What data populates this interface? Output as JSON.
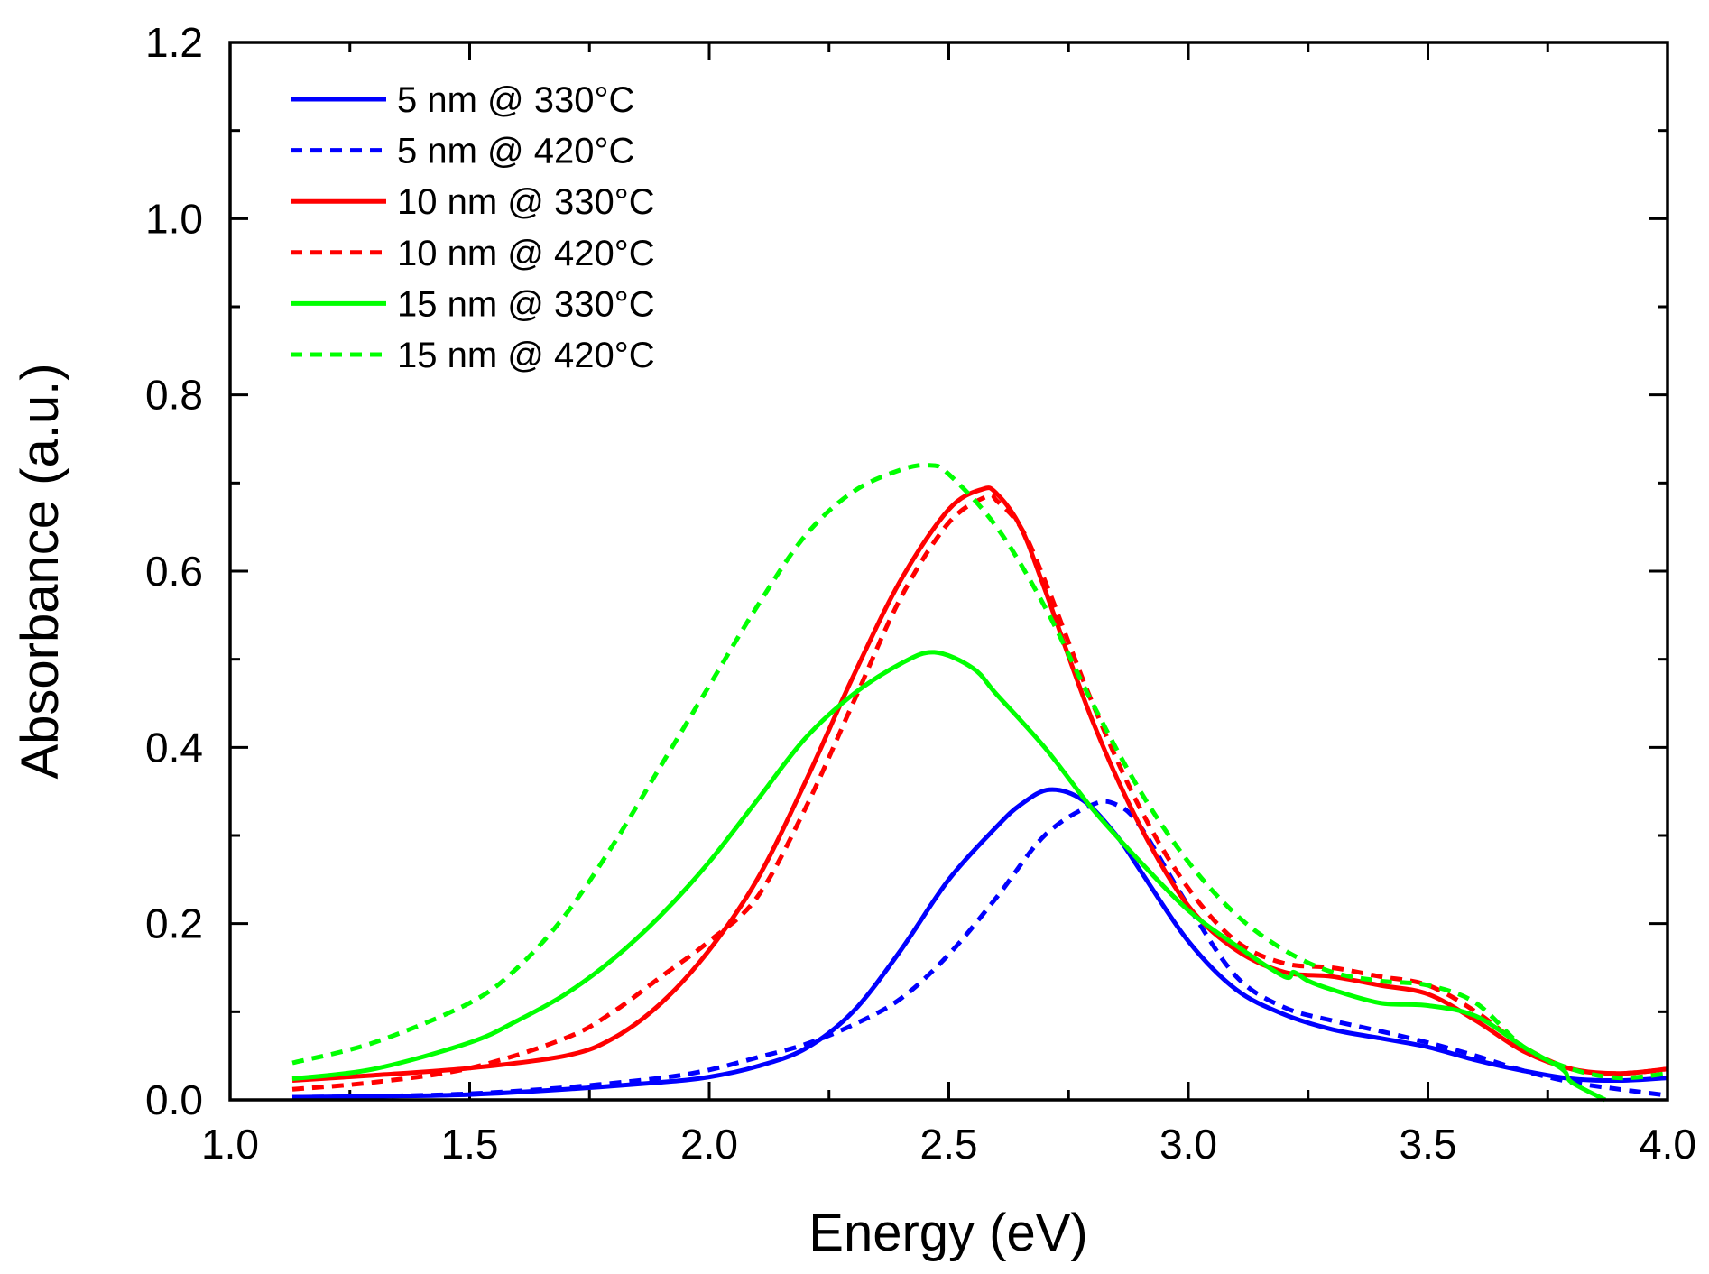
{
  "chart_data": {
    "type": "line",
    "title": "",
    "xlabel": "Energy (eV)",
    "ylabel": "Absorbance (a.u.)",
    "xlim": [
      1.0,
      4.0
    ],
    "ylim": [
      0.0,
      1.2
    ],
    "xticks": [
      1.0,
      1.5,
      2.0,
      2.5,
      3.0,
      3.5,
      4.0
    ],
    "xtick_labels": [
      "1.0",
      "1.5",
      "2.0",
      "2.5",
      "3.0",
      "3.5",
      "4.0"
    ],
    "yticks": [
      0.0,
      0.2,
      0.4,
      0.6,
      0.8,
      1.0,
      1.2
    ],
    "ytick_labels": [
      "0.0",
      "0.2",
      "0.4",
      "0.6",
      "0.8",
      "1.0",
      "1.2"
    ],
    "grid": false,
    "legend_position": "top-left",
    "series": [
      {
        "name": "5 nm @ 330°C",
        "color": "#0000ff",
        "dash": "solid",
        "x": [
          1.13,
          1.3,
          1.5,
          1.7,
          1.9,
          2.0,
          2.1,
          2.2,
          2.3,
          2.4,
          2.5,
          2.6,
          2.65,
          2.71,
          2.78,
          2.85,
          2.9,
          3.0,
          3.1,
          3.2,
          3.3,
          3.4,
          3.5,
          3.6,
          3.7,
          3.8,
          3.9,
          4.0
        ],
        "y": [
          0.003,
          0.004,
          0.006,
          0.012,
          0.02,
          0.026,
          0.038,
          0.058,
          0.1,
          0.17,
          0.25,
          0.31,
          0.335,
          0.352,
          0.34,
          0.3,
          0.26,
          0.18,
          0.125,
          0.097,
          0.08,
          0.07,
          0.06,
          0.045,
          0.033,
          0.024,
          0.022,
          0.025
        ]
      },
      {
        "name": "5 nm @ 420°C",
        "color": "#0000ff",
        "dash": "dashed",
        "x": [
          1.13,
          1.3,
          1.5,
          1.7,
          1.9,
          2.0,
          2.1,
          2.2,
          2.3,
          2.4,
          2.5,
          2.6,
          2.7,
          2.8,
          2.85,
          2.9,
          3.0,
          3.1,
          3.2,
          3.3,
          3.4,
          3.5,
          3.6,
          3.7,
          3.8,
          3.9,
          4.0
        ],
        "y": [
          0.003,
          0.004,
          0.007,
          0.014,
          0.025,
          0.034,
          0.048,
          0.063,
          0.085,
          0.115,
          0.165,
          0.23,
          0.3,
          0.335,
          0.335,
          0.31,
          0.22,
          0.14,
          0.105,
          0.09,
          0.078,
          0.065,
          0.05,
          0.033,
          0.02,
          0.012,
          0.005
        ]
      },
      {
        "name": "10 nm @ 330°C",
        "color": "#ff0000",
        "dash": "solid",
        "x": [
          1.13,
          1.3,
          1.5,
          1.7,
          1.8,
          1.9,
          2.0,
          2.1,
          2.2,
          2.3,
          2.4,
          2.5,
          2.57,
          2.6,
          2.65,
          2.7,
          2.8,
          2.9,
          3.0,
          3.1,
          3.2,
          3.3,
          3.4,
          3.5,
          3.6,
          3.7,
          3.8,
          3.9,
          4.0
        ],
        "y": [
          0.022,
          0.028,
          0.036,
          0.05,
          0.07,
          0.11,
          0.17,
          0.25,
          0.36,
          0.48,
          0.59,
          0.67,
          0.693,
          0.688,
          0.65,
          0.58,
          0.43,
          0.31,
          0.22,
          0.17,
          0.145,
          0.14,
          0.13,
          0.12,
          0.09,
          0.055,
          0.035,
          0.03,
          0.035
        ]
      },
      {
        "name": "10 nm @ 420°C",
        "color": "#ff0000",
        "dash": "dashed",
        "x": [
          1.13,
          1.3,
          1.5,
          1.7,
          1.8,
          1.9,
          2.0,
          2.1,
          2.2,
          2.3,
          2.4,
          2.5,
          2.58,
          2.6,
          2.65,
          2.7,
          2.8,
          2.9,
          3.0,
          3.1,
          3.2,
          3.3,
          3.4,
          3.5,
          3.6,
          3.7,
          3.8,
          3.9,
          4.0
        ],
        "y": [
          0.012,
          0.02,
          0.036,
          0.07,
          0.1,
          0.14,
          0.18,
          0.23,
          0.33,
          0.45,
          0.57,
          0.655,
          0.685,
          0.68,
          0.65,
          0.59,
          0.45,
          0.33,
          0.24,
          0.18,
          0.155,
          0.15,
          0.14,
          0.13,
          0.1,
          0.06,
          0.035,
          0.03,
          0.035
        ]
      },
      {
        "name": "15 nm @ 330°C",
        "color": "#00ff00",
        "dash": "solid",
        "x": [
          1.13,
          1.3,
          1.5,
          1.6,
          1.7,
          1.8,
          1.9,
          2.0,
          2.1,
          2.2,
          2.3,
          2.4,
          2.47,
          2.55,
          2.6,
          2.7,
          2.8,
          2.9,
          3.0,
          3.1,
          3.2,
          3.22,
          3.25,
          3.3,
          3.4,
          3.5,
          3.6,
          3.7,
          3.78,
          3.8,
          3.87
        ],
        "y": [
          0.024,
          0.035,
          0.065,
          0.09,
          0.12,
          0.16,
          0.21,
          0.27,
          0.34,
          0.41,
          0.46,
          0.495,
          0.508,
          0.49,
          0.46,
          0.4,
          0.33,
          0.27,
          0.215,
          0.175,
          0.14,
          0.145,
          0.135,
          0.125,
          0.11,
          0.107,
          0.095,
          0.06,
          0.035,
          0.02,
          0.0
        ]
      },
      {
        "name": "15 nm @ 420°C",
        "color": "#00ff00",
        "dash": "dashed",
        "x": [
          1.13,
          1.3,
          1.5,
          1.6,
          1.7,
          1.8,
          1.9,
          2.0,
          2.1,
          2.2,
          2.3,
          2.4,
          2.46,
          2.5,
          2.6,
          2.7,
          2.8,
          2.9,
          3.0,
          3.1,
          3.2,
          3.3,
          3.4,
          3.5,
          3.6,
          3.7,
          3.8,
          3.9,
          4.0
        ],
        "y": [
          0.042,
          0.065,
          0.11,
          0.15,
          0.21,
          0.29,
          0.38,
          0.47,
          0.56,
          0.64,
          0.69,
          0.715,
          0.72,
          0.71,
          0.65,
          0.56,
          0.45,
          0.35,
          0.27,
          0.21,
          0.17,
          0.145,
          0.135,
          0.13,
          0.11,
          0.06,
          0.035,
          0.025,
          0.03
        ]
      }
    ]
  }
}
